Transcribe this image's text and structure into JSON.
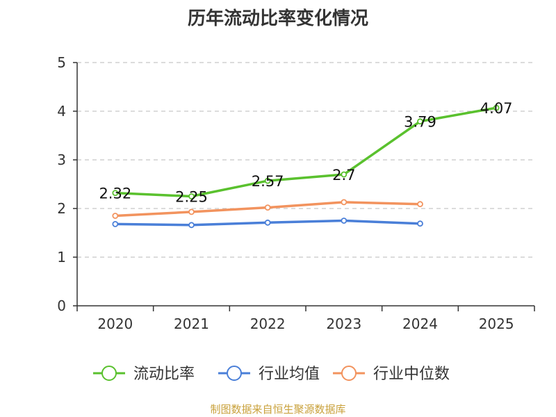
{
  "chart_data": {
    "type": "line",
    "title": "历年流动比率变化情况",
    "categories": [
      "2020",
      "2021",
      "2022",
      "2023",
      "2024",
      "2025"
    ],
    "yticks": [
      "0",
      "1",
      "2",
      "3",
      "4",
      "5"
    ],
    "ylim": [
      0,
      5
    ],
    "grid": "dashed-horizontal",
    "legend_position": "bottom",
    "series": [
      {
        "name": "流动比率",
        "color": "#5ac12e",
        "values": [
          2.32,
          2.25,
          2.57,
          2.7,
          3.79,
          4.07
        ],
        "labels": [
          "2.32",
          "2.25",
          "2.57",
          "2.7",
          "3.79",
          "4.07"
        ]
      },
      {
        "name": "行业均值",
        "color": "#4a7fd8",
        "values": [
          1.68,
          1.66,
          1.71,
          1.75,
          1.69,
          null
        ]
      },
      {
        "name": "行业中位数",
        "color": "#f2935e",
        "values": [
          1.85,
          1.93,
          2.02,
          2.13,
          2.09,
          null
        ]
      }
    ]
  },
  "footer": {
    "source": "制图数据来自恒生聚源数据库"
  }
}
